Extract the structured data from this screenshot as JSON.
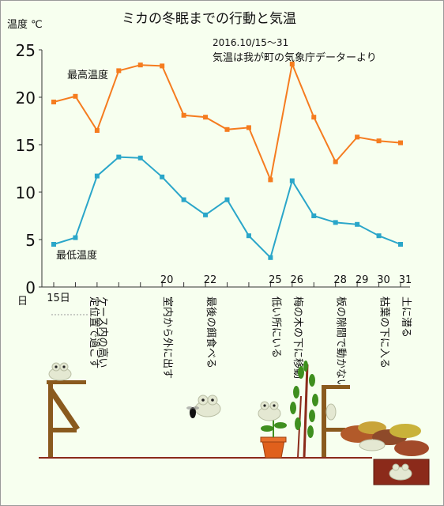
{
  "chart_data": {
    "type": "line",
    "title": "ミカの冬眠までの行動と気温",
    "ylabel": "温度 ℃",
    "xlabel": "日",
    "ylim": [
      0,
      25
    ],
    "yticks": [
      0,
      5,
      10,
      15,
      20,
      25
    ],
    "period_note": "2016.10/15〜31",
    "source_note": "気温は我が町の気象庁データーより",
    "x": [
      15,
      16,
      17,
      18,
      19,
      20,
      21,
      22,
      23,
      24,
      25,
      26,
      27,
      28,
      29,
      30,
      31
    ],
    "day_labels": [
      {
        "day": 15,
        "text": "15日"
      },
      {
        "day": 20,
        "text": "20"
      },
      {
        "day": 22,
        "text": "22"
      },
      {
        "day": 25,
        "text": "25"
      },
      {
        "day": 26,
        "text": "26"
      },
      {
        "day": 28,
        "text": "28"
      },
      {
        "day": 29,
        "text": "29"
      },
      {
        "day": 30,
        "text": "30"
      },
      {
        "day": 31,
        "text": "31"
      }
    ],
    "series": [
      {
        "name": "最高温度",
        "color": "#f57c1f",
        "values": [
          19.5,
          20.1,
          16.5,
          22.8,
          23.4,
          23.3,
          18.1,
          17.9,
          16.6,
          16.8,
          11.3,
          23.5,
          17.9,
          13.2,
          15.8,
          15.4,
          15.2
        ]
      },
      {
        "name": "最低温度",
        "color": "#2aa6c9",
        "values": [
          4.5,
          5.2,
          11.7,
          13.7,
          13.6,
          11.6,
          9.2,
          7.6,
          9.2,
          5.4,
          3.1,
          11.2,
          7.5,
          6.8,
          6.6,
          5.4,
          4.5
        ]
      }
    ],
    "annotations": [
      {
        "day": 17,
        "text": "ケース内の高い"
      },
      {
        "day": 16.6,
        "text": "定位置で過ごす"
      },
      {
        "day": 20,
        "text": "室内から外に出す"
      },
      {
        "day": 22,
        "text": "最後の餌食べる"
      },
      {
        "day": 25,
        "text": "低い所にいる"
      },
      {
        "day": 26,
        "text": "梅の木の下に移動"
      },
      {
        "day": 28,
        "text": "板の隙間で動かない"
      },
      {
        "day": 30,
        "text": "枯葉の下に入る"
      },
      {
        "day": 31,
        "text": "土に潜る"
      }
    ]
  },
  "colors": {
    "background": "#f7ffef",
    "max_line": "#f57c1f",
    "min_line": "#2aa6c9",
    "wood": "#8a5a1e",
    "ground": "#8b2a1a",
    "frog": "#e8ecd8",
    "leaf": "#3f8f1f",
    "pot": "#e0601c"
  }
}
